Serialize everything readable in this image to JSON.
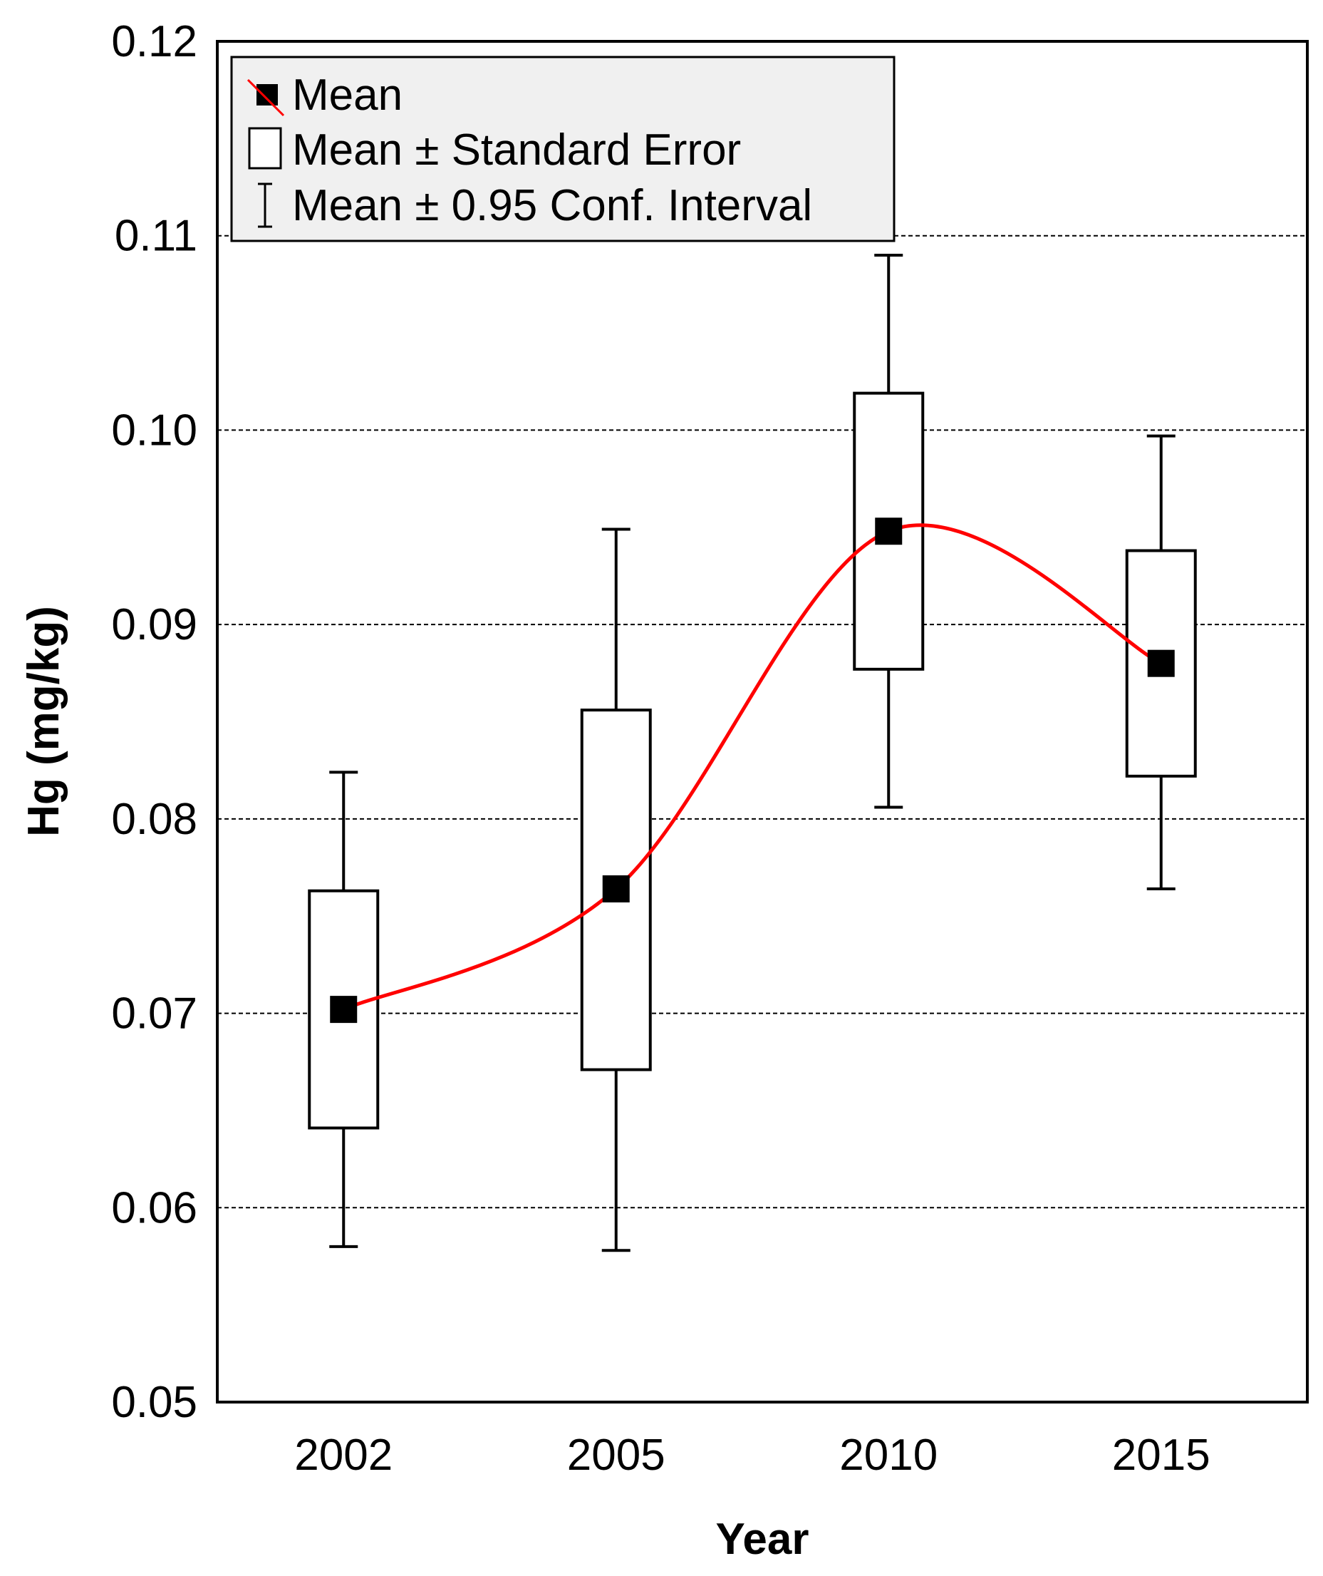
{
  "chart_data": {
    "type": "box",
    "title": "",
    "xlabel": "Year",
    "ylabel": "Hg (mg/kg)",
    "ylim": [
      0.05,
      0.12
    ],
    "y_ticks": [
      "0.05",
      "0.06",
      "0.07",
      "0.08",
      "0.09",
      "0.10",
      "0.11",
      "0.12"
    ],
    "grid": "horizontal dashed",
    "categories": [
      "2002",
      "2005",
      "2010",
      "2015"
    ],
    "series": [
      {
        "name": "Mean",
        "values": [
          0.0702,
          0.0764,
          0.0948,
          0.088
        ]
      },
      {
        "name": "Mean - Standard Error",
        "values": [
          0.0641,
          0.0671,
          0.0877,
          0.0822
        ]
      },
      {
        "name": "Mean + Standard Error",
        "values": [
          0.0763,
          0.0856,
          0.1019,
          0.0938
        ]
      },
      {
        "name": "Mean - 0.95 Conf. Interval",
        "values": [
          0.058,
          0.0578,
          0.0806,
          0.0764
        ]
      },
      {
        "name": "Mean + 0.95 Conf. Interval",
        "values": [
          0.0824,
          0.0949,
          0.109,
          0.0997
        ]
      }
    ],
    "trend_line": {
      "color": "#ff0000",
      "type": "smooth spline through means"
    },
    "legend": {
      "position": "top-left",
      "entries": [
        "Mean",
        "Mean ± Standard Error",
        "Mean ± 0.95 Conf. Interval"
      ]
    }
  }
}
